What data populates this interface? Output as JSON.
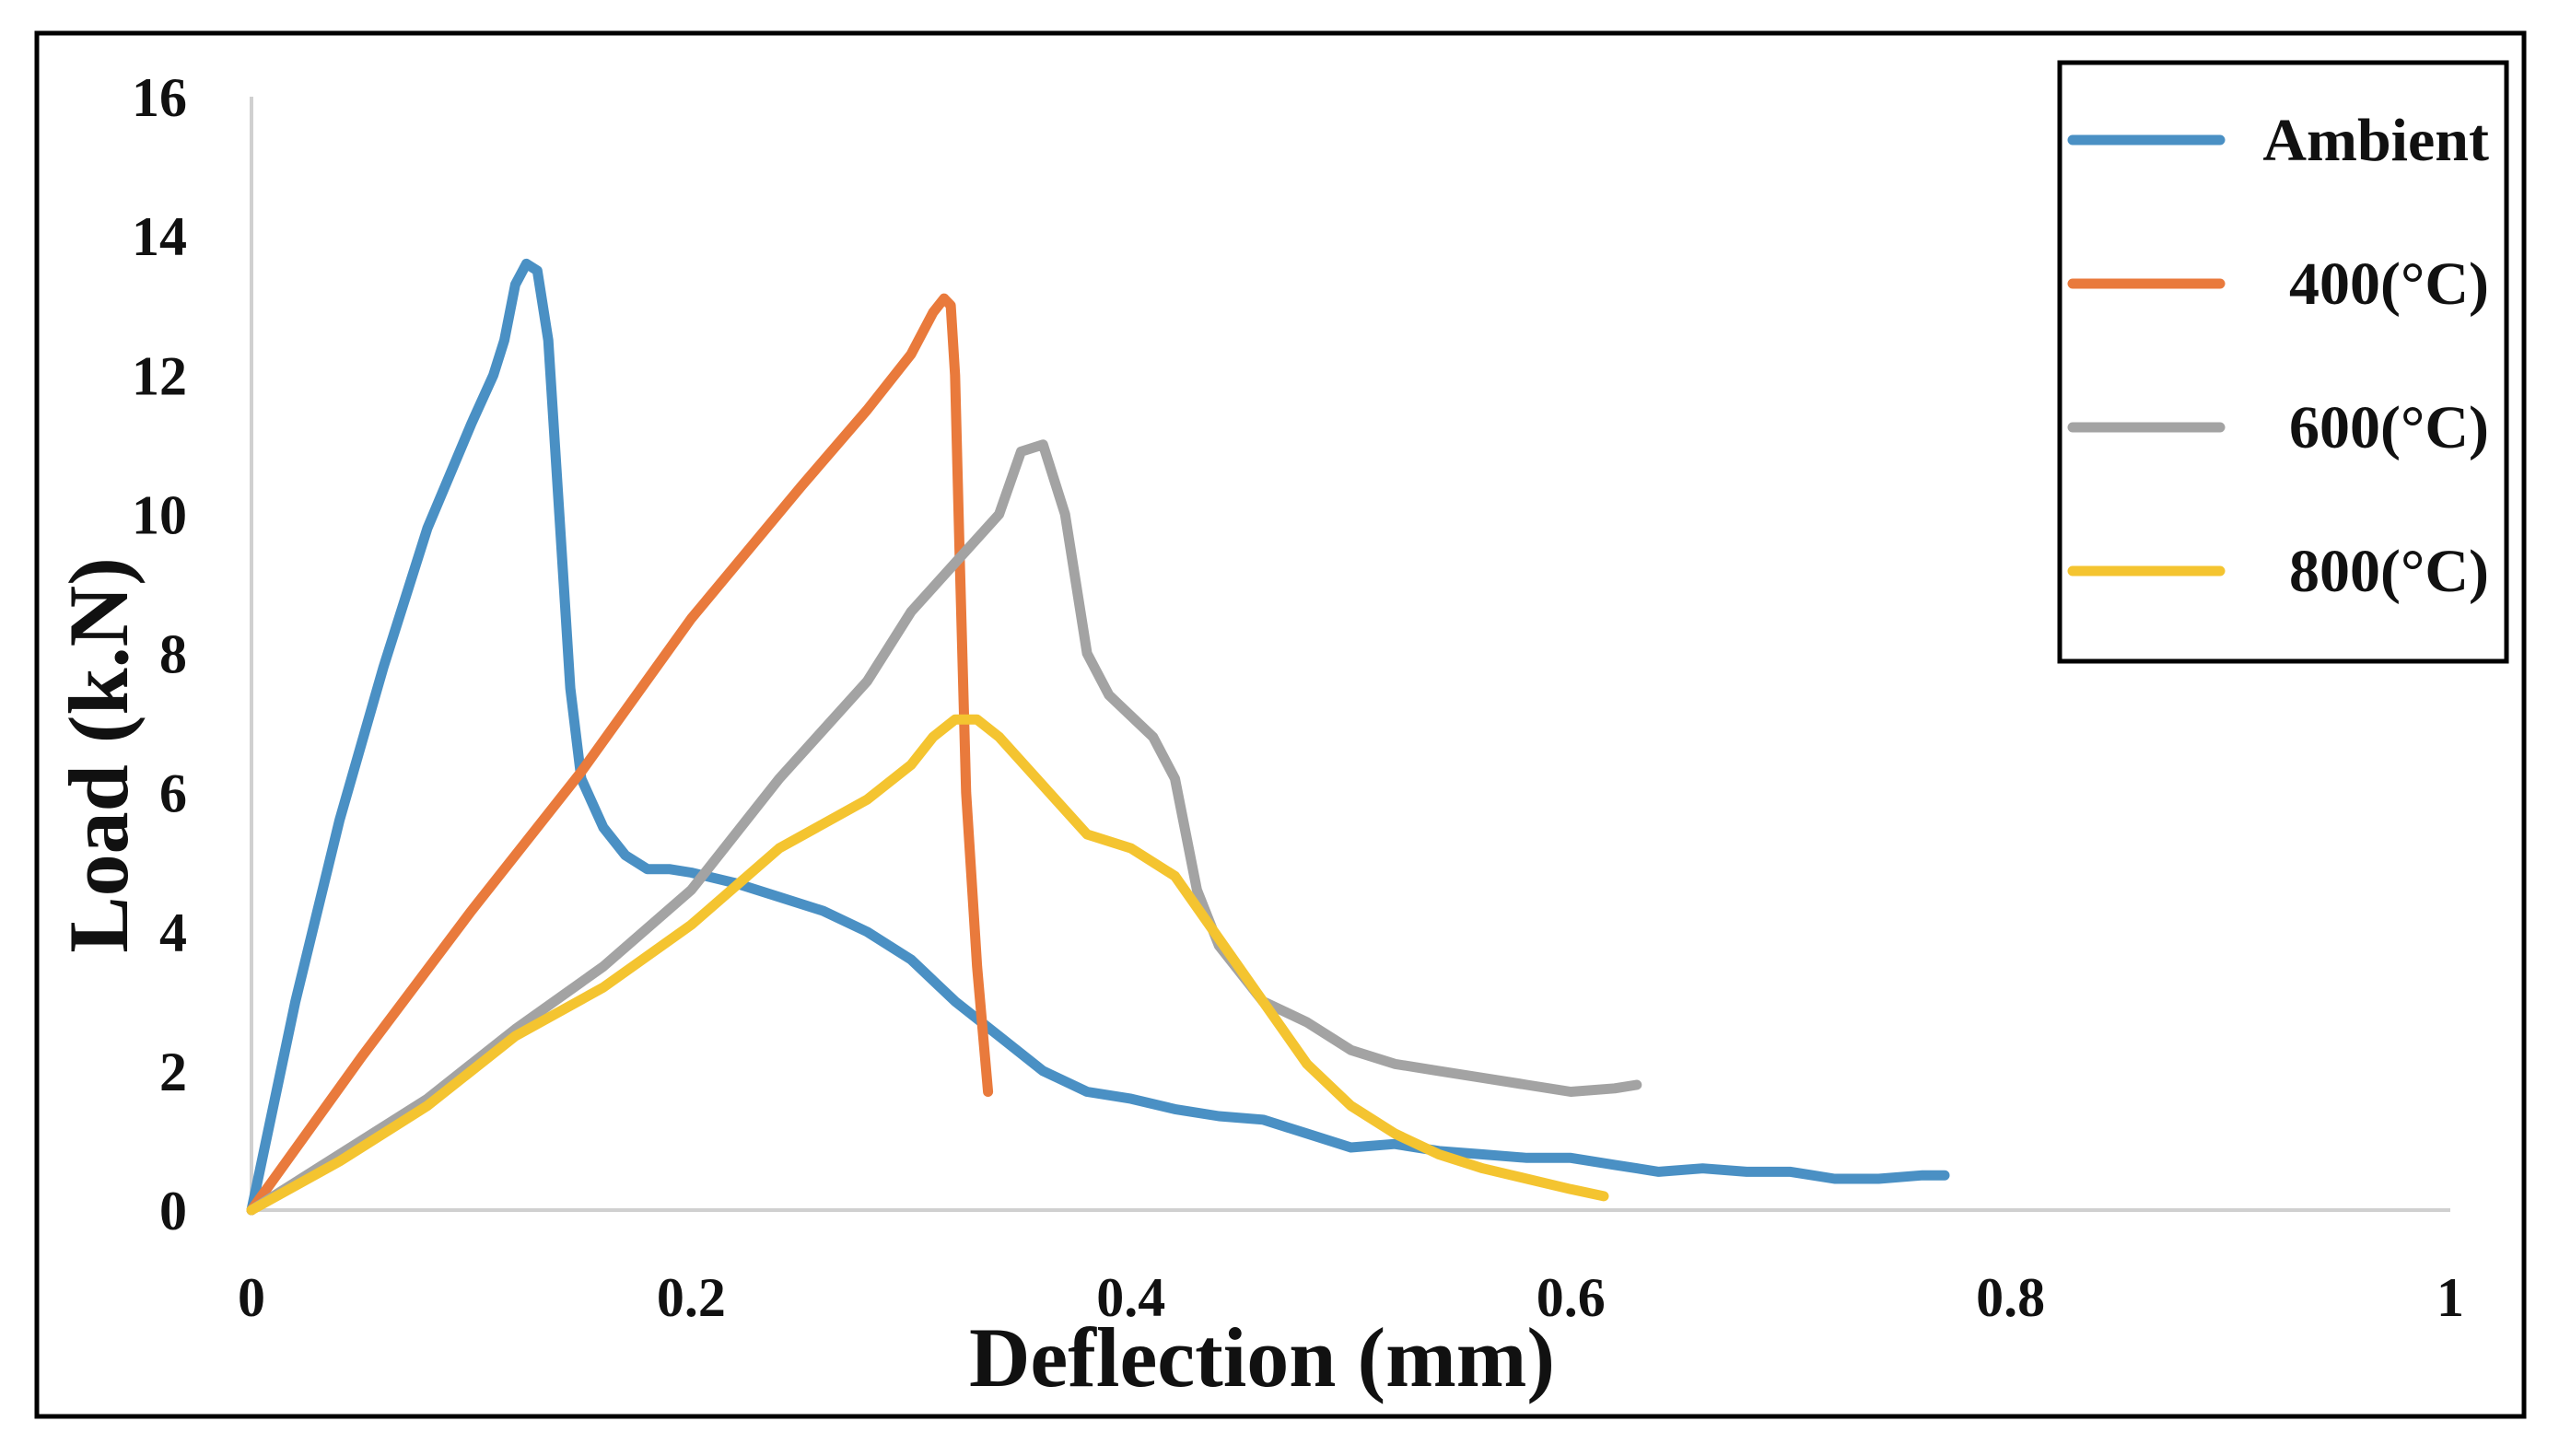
{
  "chart_data": {
    "type": "line",
    "title": "",
    "xlabel": "Deflection (mm)",
    "ylabel": "Load (k.N)",
    "xlim": [
      0,
      1
    ],
    "ylim": [
      0,
      16
    ],
    "xticks": [
      0,
      0.2,
      0.4,
      0.6,
      0.8,
      1
    ],
    "xtick_labels": [
      "0",
      "0.2",
      "0.4",
      "0.6",
      "0.8",
      "1"
    ],
    "yticks": [
      0,
      2,
      4,
      6,
      8,
      10,
      12,
      14,
      16
    ],
    "ytick_labels": [
      "0",
      "2",
      "4",
      "6",
      "8",
      "10",
      "12",
      "14",
      "16"
    ],
    "grid": false,
    "legend_position": "top-right",
    "series": [
      {
        "name": "Ambient",
        "color": "#4a90c4",
        "x": [
          0,
          0.02,
          0.04,
          0.06,
          0.08,
          0.1,
          0.11,
          0.115,
          0.12,
          0.125,
          0.13,
          0.135,
          0.14,
          0.145,
          0.15,
          0.16,
          0.17,
          0.18,
          0.19,
          0.2,
          0.22,
          0.24,
          0.26,
          0.28,
          0.3,
          0.32,
          0.34,
          0.36,
          0.38,
          0.4,
          0.42,
          0.44,
          0.46,
          0.48,
          0.5,
          0.52,
          0.54,
          0.56,
          0.58,
          0.6,
          0.62,
          0.64,
          0.66,
          0.68,
          0.7,
          0.72,
          0.74,
          0.76,
          0.77
        ],
        "y": [
          0,
          3.0,
          5.6,
          7.8,
          9.8,
          11.3,
          12.0,
          12.5,
          13.3,
          13.6,
          13.5,
          12.5,
          10.0,
          7.5,
          6.2,
          5.5,
          5.1,
          4.9,
          4.9,
          4.85,
          4.7,
          4.5,
          4.3,
          4.0,
          3.6,
          3.0,
          2.5,
          2.0,
          1.7,
          1.6,
          1.45,
          1.35,
          1.3,
          1.1,
          0.9,
          0.95,
          0.85,
          0.8,
          0.75,
          0.75,
          0.65,
          0.55,
          0.6,
          0.55,
          0.55,
          0.45,
          0.45,
          0.5,
          0.5
        ]
      },
      {
        "name": "400(°C)",
        "color": "#e97a3c",
        "x": [
          0,
          0.05,
          0.1,
          0.15,
          0.2,
          0.25,
          0.28,
          0.3,
          0.31,
          0.315,
          0.318,
          0.32,
          0.322,
          0.325,
          0.33,
          0.335
        ],
        "y": [
          0,
          2.2,
          4.3,
          6.3,
          8.5,
          10.4,
          11.5,
          12.3,
          12.9,
          13.1,
          13.0,
          12.0,
          9.5,
          6.0,
          3.5,
          1.7
        ]
      },
      {
        "name": "600(°C)",
        "color": "#a3a3a3",
        "x": [
          0,
          0.04,
          0.08,
          0.12,
          0.16,
          0.2,
          0.24,
          0.28,
          0.3,
          0.32,
          0.34,
          0.35,
          0.36,
          0.37,
          0.38,
          0.39,
          0.41,
          0.42,
          0.43,
          0.44,
          0.46,
          0.48,
          0.5,
          0.52,
          0.54,
          0.56,
          0.58,
          0.6,
          0.62,
          0.63
        ],
        "y": [
          0,
          0.8,
          1.6,
          2.6,
          3.5,
          4.6,
          6.2,
          7.6,
          8.6,
          9.3,
          10.0,
          10.9,
          11.0,
          10.0,
          8.0,
          7.4,
          6.8,
          6.2,
          4.6,
          3.8,
          3.0,
          2.7,
          2.3,
          2.1,
          2.0,
          1.9,
          1.8,
          1.7,
          1.75,
          1.8
        ]
      },
      {
        "name": "800(°C)",
        "color": "#f4c430",
        "x": [
          0,
          0.04,
          0.08,
          0.12,
          0.16,
          0.2,
          0.24,
          0.28,
          0.3,
          0.31,
          0.32,
          0.33,
          0.34,
          0.36,
          0.38,
          0.4,
          0.42,
          0.44,
          0.46,
          0.48,
          0.5,
          0.52,
          0.54,
          0.56,
          0.58,
          0.6,
          0.615
        ],
        "y": [
          0,
          0.7,
          1.5,
          2.5,
          3.2,
          4.1,
          5.2,
          5.9,
          6.4,
          6.8,
          7.05,
          7.05,
          6.8,
          6.1,
          5.4,
          5.2,
          4.8,
          3.9,
          3.0,
          2.1,
          1.5,
          1.1,
          0.8,
          0.6,
          0.45,
          0.3,
          0.2
        ]
      }
    ]
  }
}
